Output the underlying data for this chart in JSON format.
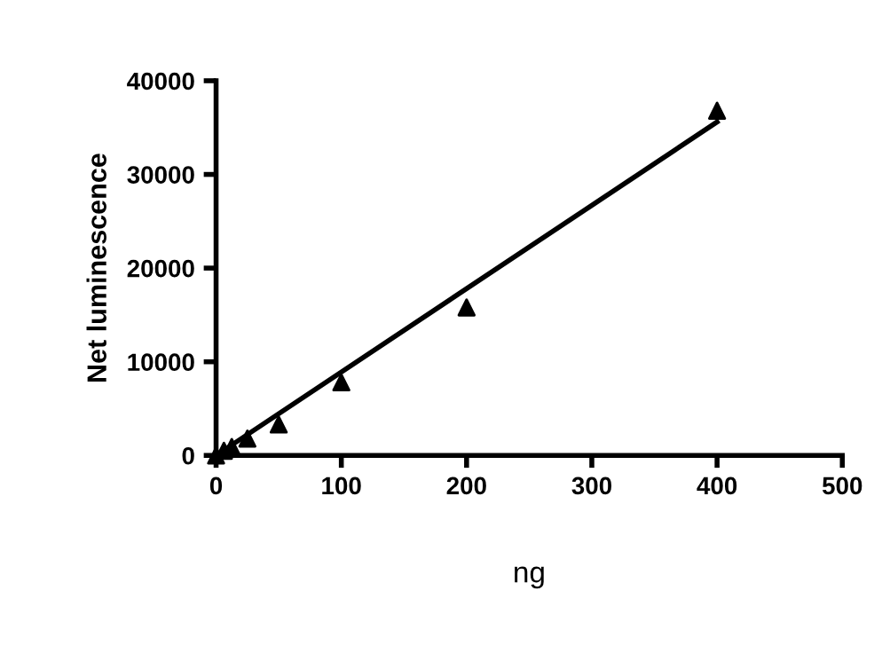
{
  "chart_data": {
    "type": "scatter",
    "xlabel": "ng",
    "ylabel": "Net luminescence",
    "xlim": [
      0,
      500
    ],
    "xticks": [
      0,
      100,
      200,
      300,
      400,
      500
    ],
    "ylim": [
      0,
      40000
    ],
    "yticks": [
      0,
      10000,
      20000,
      30000,
      40000
    ],
    "grid": false,
    "legend": false,
    "series": [
      {
        "marker": "triangle",
        "color": "#000000",
        "x": [
          0,
          6.25,
          12.5,
          25,
          50,
          100,
          200,
          400
        ],
        "values": [
          0,
          500,
          900,
          1800,
          3300,
          7800,
          15800,
          36800
        ]
      },
      {
        "type": "line",
        "color": "#000000",
        "x": [
          0,
          400
        ],
        "values": [
          0,
          35600
        ],
        "line_style": "solid",
        "marker": "none"
      }
    ]
  }
}
